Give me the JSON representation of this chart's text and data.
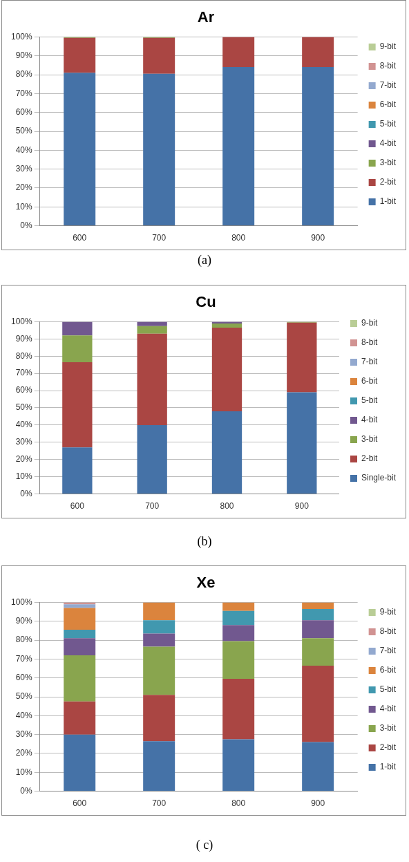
{
  "chart_data": [
    {
      "type": "bar",
      "title": "Ar",
      "categories": [
        "600",
        "700",
        "800",
        "900"
      ],
      "stacked": true,
      "ylim": [
        0,
        100
      ],
      "yticks": [
        {
          "value": 0,
          "label": "0%"
        },
        {
          "value": 10,
          "label": "10%"
        },
        {
          "value": 20,
          "label": "20%"
        },
        {
          "value": 30,
          "label": "30%"
        },
        {
          "value": 40,
          "label": "40%"
        },
        {
          "value": 50,
          "label": "50%"
        },
        {
          "value": 60,
          "label": "60%"
        },
        {
          "value": 70,
          "label": "70%"
        },
        {
          "value": 80,
          "label": "80%"
        },
        {
          "value": 90,
          "label": "90%"
        },
        {
          "value": 100,
          "label": "100%"
        }
      ],
      "grid": "y",
      "legend": "right",
      "annotations": [
        "(a)"
      ],
      "series": [
        {
          "name": "1-bit",
          "color": "#4572a7",
          "values": [
            81,
            80.5,
            84,
            84
          ]
        },
        {
          "name": "2-bit",
          "color": "#aa4643",
          "values": [
            18.5,
            19,
            16,
            16
          ]
        },
        {
          "name": "3-bit",
          "color": "#89a54e",
          "values": [
            0.5,
            0.5,
            0,
            0
          ]
        },
        {
          "name": "4-bit",
          "color": "#71588f",
          "values": [
            0,
            0,
            0,
            0
          ]
        },
        {
          "name": "5-bit",
          "color": "#4198af",
          "values": [
            0,
            0,
            0,
            0
          ]
        },
        {
          "name": "6-bit",
          "color": "#db843d",
          "values": [
            0,
            0,
            0,
            0
          ]
        },
        {
          "name": "7-bit",
          "color": "#93a9cf",
          "values": [
            0,
            0,
            0,
            0
          ]
        },
        {
          "name": "8-bit",
          "color": "#d19392",
          "values": [
            0,
            0,
            0,
            0
          ]
        },
        {
          "name": "9-bit",
          "color": "#b9cd96",
          "values": [
            0,
            0,
            0,
            0
          ]
        }
      ]
    },
    {
      "type": "bar",
      "title": "Cu",
      "categories": [
        "600",
        "700",
        "800",
        "900"
      ],
      "stacked": true,
      "ylim": [
        0,
        100
      ],
      "yticks": [
        {
          "value": 0,
          "label": "0%"
        },
        {
          "value": 10,
          "label": "10%"
        },
        {
          "value": 20,
          "label": "20%"
        },
        {
          "value": 30,
          "label": "30%"
        },
        {
          "value": 40,
          "label": "40%"
        },
        {
          "value": 50,
          "label": "50%"
        },
        {
          "value": 60,
          "label": "60%"
        },
        {
          "value": 70,
          "label": "70%"
        },
        {
          "value": 80,
          "label": "80%"
        },
        {
          "value": 90,
          "label": "90%"
        },
        {
          "value": 100,
          "label": "100%"
        }
      ],
      "grid": "y",
      "legend": "right",
      "annotations": [
        "(b)"
      ],
      "series": [
        {
          "name": "Single-bit",
          "color": "#4572a7",
          "values": [
            27,
            40,
            48,
            59
          ]
        },
        {
          "name": "2-bit",
          "color": "#aa4643",
          "values": [
            49.5,
            53,
            48.5,
            40.5
          ]
        },
        {
          "name": "3-bit",
          "color": "#89a54e",
          "values": [
            15.5,
            4.5,
            2.5,
            0.5
          ]
        },
        {
          "name": "4-bit",
          "color": "#71588f",
          "values": [
            8,
            2.5,
            1,
            0
          ]
        },
        {
          "name": "5-bit",
          "color": "#4198af",
          "values": [
            0,
            0,
            0,
            0
          ]
        },
        {
          "name": "6-bit",
          "color": "#db843d",
          "values": [
            0,
            0,
            0,
            0
          ]
        },
        {
          "name": "7-bit",
          "color": "#93a9cf",
          "values": [
            0,
            0,
            0,
            0
          ]
        },
        {
          "name": "8-bit",
          "color": "#d19392",
          "values": [
            0,
            0,
            0,
            0
          ]
        },
        {
          "name": "9-bit",
          "color": "#b9cd96",
          "values": [
            0,
            0,
            0,
            0
          ]
        }
      ]
    },
    {
      "type": "bar",
      "title": "Xe",
      "categories": [
        "600",
        "700",
        "800",
        "900"
      ],
      "stacked": true,
      "ylim": [
        0,
        100
      ],
      "yticks": [
        {
          "value": 0,
          "label": "0%"
        },
        {
          "value": 10,
          "label": "10%"
        },
        {
          "value": 20,
          "label": "20%"
        },
        {
          "value": 30,
          "label": "30%"
        },
        {
          "value": 40,
          "label": "40%"
        },
        {
          "value": 50,
          "label": "50%"
        },
        {
          "value": 60,
          "label": "60%"
        },
        {
          "value": 70,
          "label": "70%"
        },
        {
          "value": 80,
          "label": "80%"
        },
        {
          "value": 90,
          "label": "90%"
        },
        {
          "value": 100,
          "label": "100%"
        }
      ],
      "grid": "y",
      "legend": "right",
      "annotations": [
        "( c)"
      ],
      "series": [
        {
          "name": "1-bit",
          "color": "#4572a7",
          "values": [
            30,
            26.5,
            27.5,
            26
          ]
        },
        {
          "name": "2-bit",
          "color": "#aa4643",
          "values": [
            17.5,
            24.5,
            32,
            40.5
          ]
        },
        {
          "name": "3-bit",
          "color": "#89a54e",
          "values": [
            24.5,
            25.5,
            20,
            14.5
          ]
        },
        {
          "name": "4-bit",
          "color": "#71588f",
          "values": [
            9,
            7,
            8.5,
            9.5
          ]
        },
        {
          "name": "5-bit",
          "color": "#4198af",
          "values": [
            4.5,
            7,
            7.5,
            6
          ]
        },
        {
          "name": "6-bit",
          "color": "#db843d",
          "values": [
            11.5,
            9.5,
            4.5,
            3.5
          ]
        },
        {
          "name": "7-bit",
          "color": "#93a9cf",
          "values": [
            2,
            0,
            0,
            0
          ]
        },
        {
          "name": "8-bit",
          "color": "#d19392",
          "values": [
            1,
            0,
            0,
            0
          ]
        },
        {
          "name": "9-bit",
          "color": "#b9cd96",
          "values": [
            0,
            0,
            0,
            0
          ]
        }
      ]
    }
  ]
}
